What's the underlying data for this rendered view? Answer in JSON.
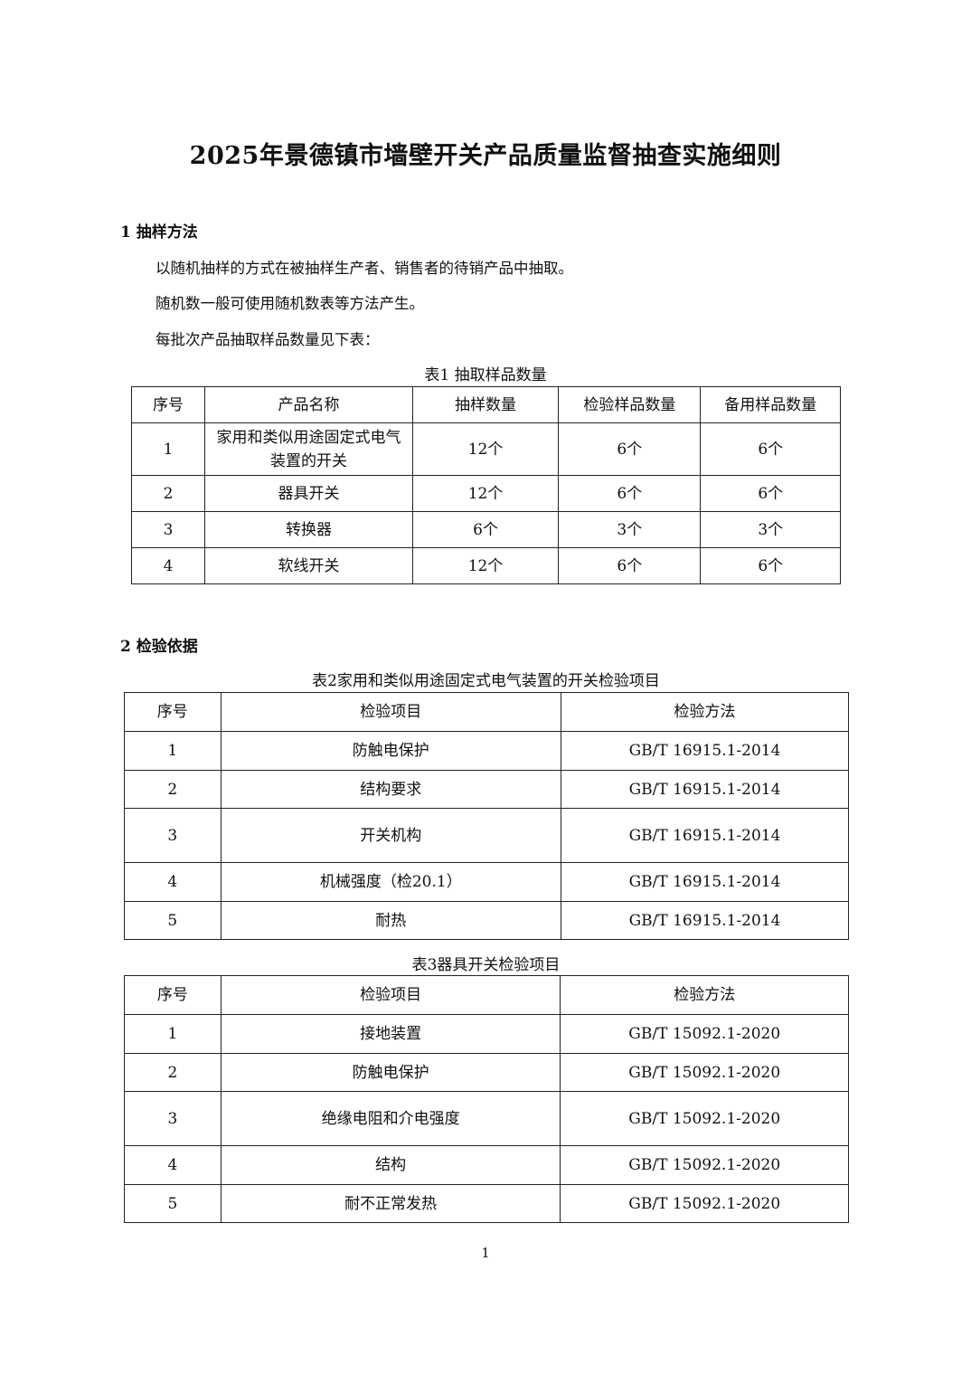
{
  "title": "2025年景德镇市墙壁开关产品质量监督抽查实施细则",
  "section1": {
    "heading": "1 抽样方法",
    "paragraphs": [
      "以随机抽样的方式在被抽样生产者、销售者的待销产品中抽取。",
      "随机数一般可使用随机数表等方法产生。",
      "每批次产品抽取样品数量见下表："
    ],
    "table1": {
      "caption": "表1 抽取样品数量",
      "headers": [
        "序号",
        "产品名称",
        "抽样数量",
        "检验样品数量",
        "备用样品数量"
      ],
      "rows": [
        [
          "1",
          "家用和类似用途固定式电气装置的开关",
          "12个",
          "6个",
          "6个"
        ],
        [
          "2",
          "器具开关",
          "12个",
          "6个",
          "6个"
        ],
        [
          "3",
          "转换器",
          "6个",
          "3个",
          "3个"
        ],
        [
          "4",
          "软线开关",
          "12个",
          "6个",
          "6个"
        ]
      ]
    }
  },
  "section2": {
    "heading": "2 检验依据",
    "table2": {
      "caption": "表2家用和类似用途固定式电气装置的开关检验项目",
      "headers": [
        "序号",
        "检验项目",
        "检验方法"
      ],
      "rows": [
        [
          "1",
          "防触电保护",
          "GB/T 16915.1-2014"
        ],
        [
          "2",
          "结构要求",
          "GB/T 16915.1-2014"
        ],
        [
          "3",
          "开关机构",
          "GB/T 16915.1-2014"
        ],
        [
          "4",
          "机械强度（检20.1）",
          "GB/T 16915.1-2014"
        ],
        [
          "5",
          "耐热",
          "GB/T 16915.1-2014"
        ]
      ]
    },
    "table3": {
      "caption": "表3器具开关检验项目",
      "headers": [
        "序号",
        "检验项目",
        "检验方法"
      ],
      "rows": [
        [
          "1",
          "接地装置",
          "GB/T 15092.1-2020"
        ],
        [
          "2",
          "防触电保护",
          "GB/T 15092.1-2020"
        ],
        [
          "3",
          "绝缘电阻和介电强度",
          "GB/T 15092.1-2020"
        ],
        [
          "4",
          "结构",
          "GB/T 15092.1-2020"
        ],
        [
          "5",
          "耐不正常发热",
          "GB/T 15092.1-2020"
        ]
      ]
    }
  },
  "page_number": "1"
}
